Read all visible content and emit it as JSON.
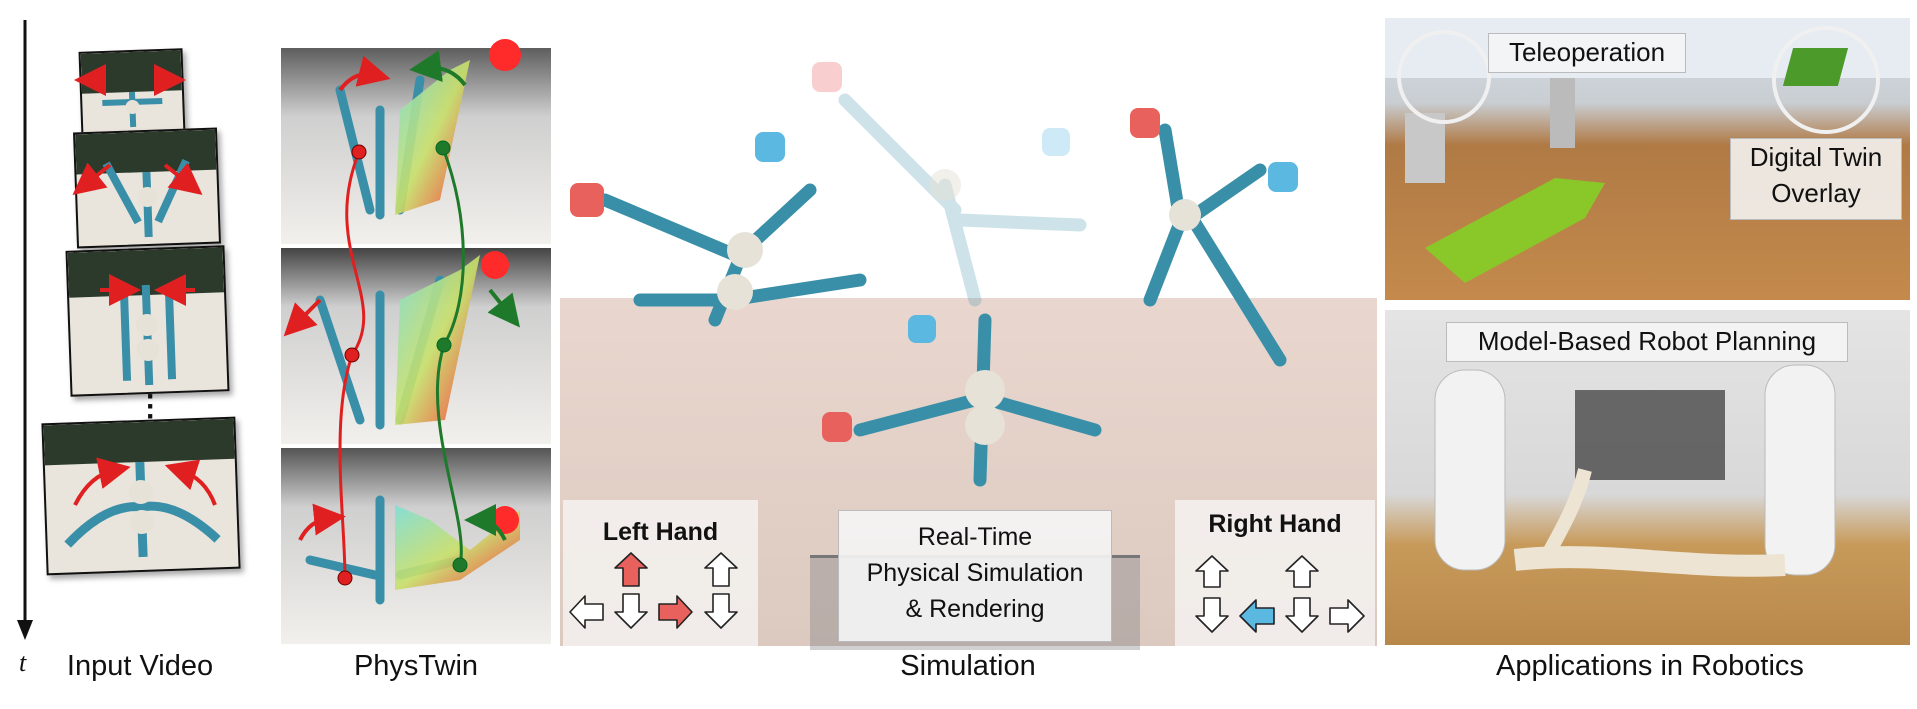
{
  "captions": {
    "input_video": "Input Video",
    "phystwin": "PhysTwin",
    "simulation": "Simulation",
    "applications": "Applications in Robotics"
  },
  "time_axis_label": "t",
  "simulation": {
    "left_hand_title": "Left Hand",
    "right_hand_title": "Right Hand",
    "center_label_lines": [
      "Real-Time",
      "Physical Simulation",
      "& Rendering"
    ]
  },
  "robotics": {
    "teleop_label": "Teleoperation",
    "overlay_label_lines": [
      "Digital Twin",
      "Overlay"
    ],
    "planning_label": "Model-Based Robot Planning"
  },
  "colors": {
    "left_hand_accent": "#e8615c",
    "right_hand_accent": "#5bb8e0",
    "trajectory_red": "#e02020",
    "trajectory_green": "#1e7a2a",
    "toy_blue": "#3a8fa8"
  },
  "icons": [
    "arrow-up-icon",
    "arrow-down-icon",
    "arrow-left-icon",
    "arrow-right-icon",
    "hand-pinch-icon"
  ]
}
